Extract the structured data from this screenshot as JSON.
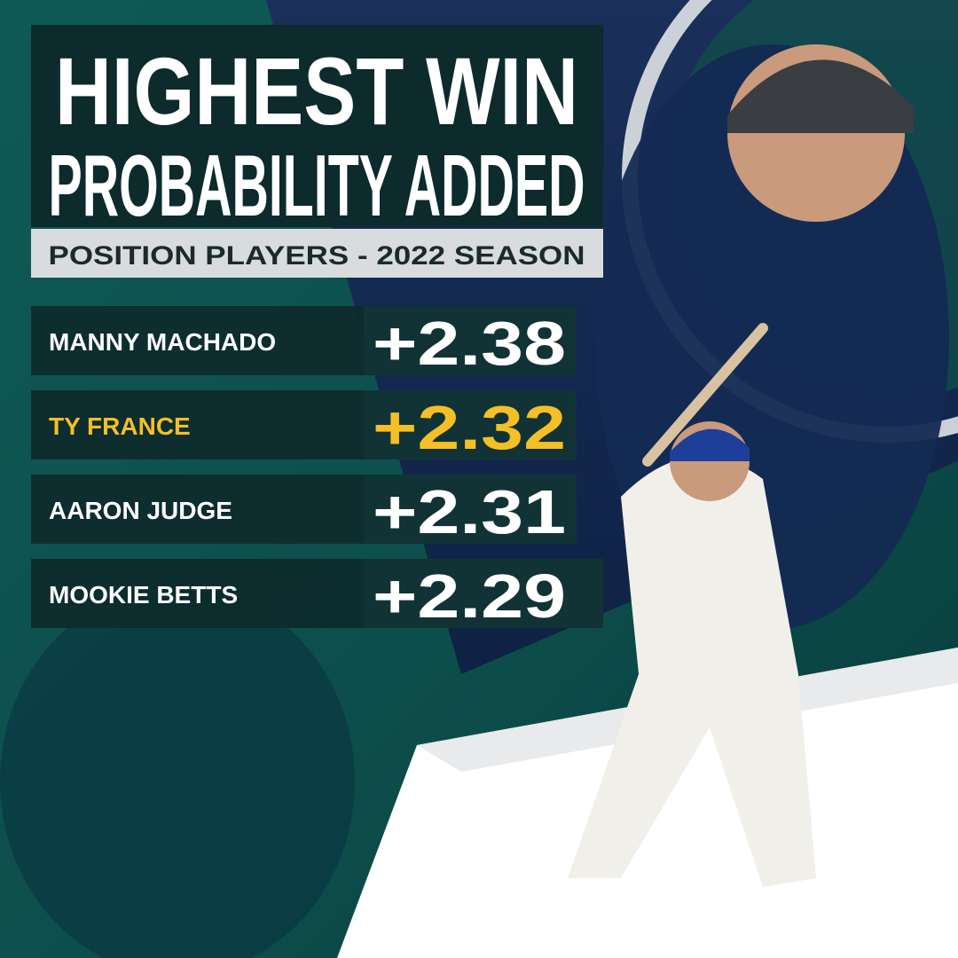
{
  "header": {
    "title_lines": [
      "HIGHEST WIN",
      "PROBABILITY ADDED"
    ],
    "subtitle": "POSITION PLAYERS - 2022 SEASON"
  },
  "rows": [
    {
      "name": "MANNY MACHADO",
      "value": "+2.38",
      "color": "#ffffff"
    },
    {
      "name": "TY FRANCE",
      "value": "+2.32",
      "color": "#f5bf26"
    },
    {
      "name": "AARON JUDGE",
      "value": "+2.31",
      "color": "#ffffff"
    },
    {
      "name": "MOOKIE BETTS",
      "value": "+2.29",
      "color": "#ffffff"
    }
  ]
}
